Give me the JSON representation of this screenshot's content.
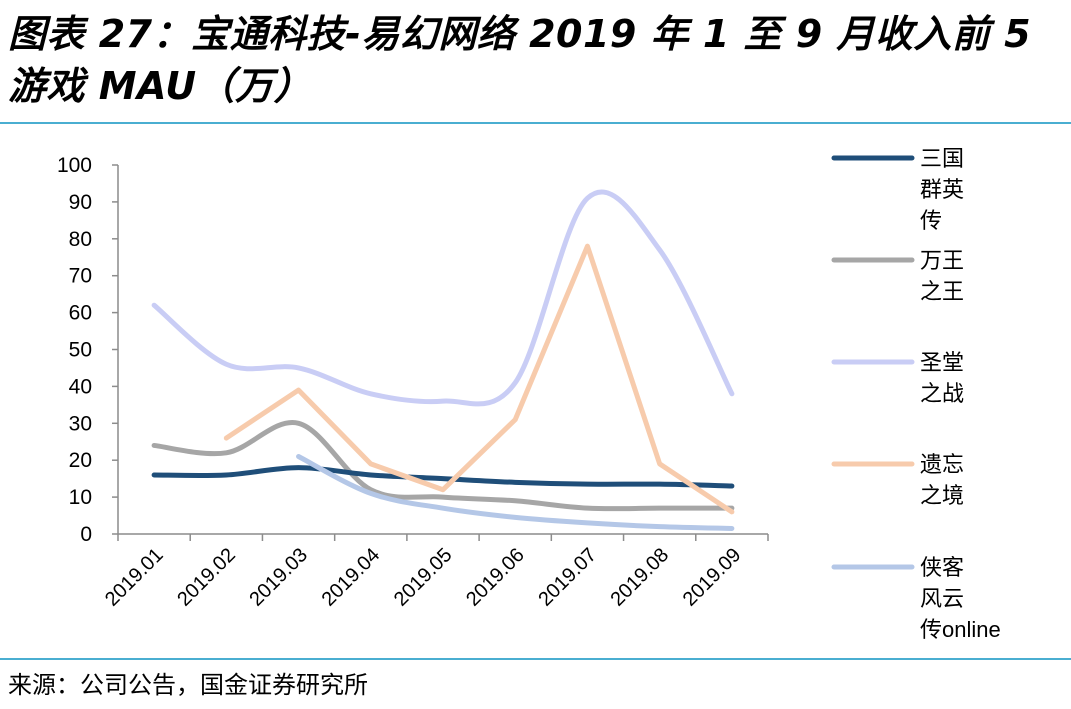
{
  "header": {
    "title": "图表 27：宝通科技-易幻网络 2019 年 1 至 9 月收入前 5 游戏 MAU（万）"
  },
  "footer": {
    "source": "来源：公司公告，国金证券研究所"
  },
  "chart_data": {
    "type": "line",
    "title": "",
    "xlabel": "",
    "ylabel": "",
    "x": [
      "2019.01",
      "2019.02",
      "2019.03",
      "2019.04",
      "2019.05",
      "2019.06",
      "2019.07",
      "2019.08",
      "2019.09"
    ],
    "ylim": [
      0,
      100
    ],
    "yticks": [
      0,
      10,
      20,
      30,
      40,
      50,
      60,
      70,
      80,
      90,
      100
    ],
    "grid": false,
    "legend_position": "right",
    "series": [
      {
        "name": "三国群英传",
        "legend_lines": [
          "三国",
          "群英",
          "传"
        ],
        "color": "#1F4E79",
        "values": [
          16,
          16,
          18,
          16,
          15,
          14,
          13.5,
          13.5,
          13
        ]
      },
      {
        "name": "万王之王",
        "legend_lines": [
          "万王",
          "之王"
        ],
        "color": "#A6A6A6",
        "values": [
          24,
          22,
          30,
          12,
          10,
          9,
          7,
          7,
          7
        ]
      },
      {
        "name": "圣堂之战",
        "legend_lines": [
          "圣堂",
          "之战"
        ],
        "color": "#C9CDF5",
        "values": [
          62,
          46,
          45,
          38,
          36,
          41,
          91,
          77,
          38
        ]
      },
      {
        "name": "遗忘之境",
        "legend_lines": [
          "遗忘",
          "之境"
        ],
        "color": "#F7CBAC",
        "values": [
          null,
          26,
          39,
          19,
          12,
          31,
          78,
          19,
          6
        ]
      },
      {
        "name": "侠客风云传online",
        "legend_lines": [
          "侠客",
          "风云",
          "传online"
        ],
        "color": "#B4C7E7",
        "values": [
          null,
          null,
          21,
          11,
          7,
          4.5,
          3,
          2,
          1.5
        ]
      }
    ]
  }
}
